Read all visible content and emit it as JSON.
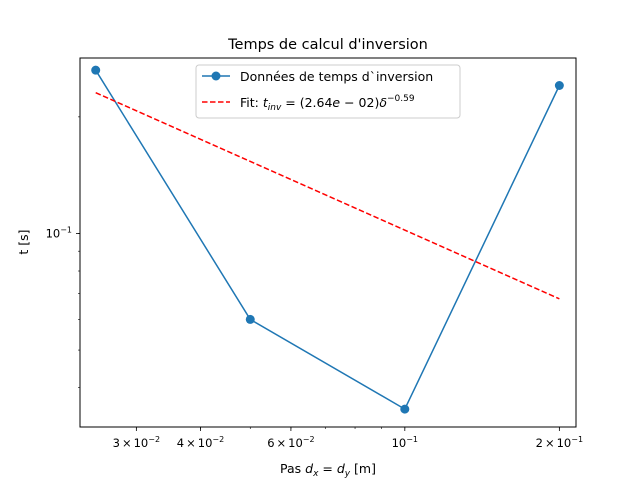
{
  "chart_data": {
    "type": "line",
    "title": "Temps de calcul d'inversion",
    "xlabel_prefix": "Pas ",
    "xlabel_math": "d_x = d_y",
    "xlabel_suffix": " [m]",
    "ylabel": "t [s]",
    "x_scale": "log",
    "y_scale": "log",
    "xlim": [
      0.0233,
      0.2155
    ],
    "ylim": [
      0.03165,
      0.2838
    ],
    "grid": false,
    "legend_position": "top-center",
    "x_ticks": [
      {
        "value": 0.03,
        "mantissa": "3",
        "exponent": "−2"
      },
      {
        "value": 0.04,
        "mantissa": "4",
        "exponent": "−2"
      },
      {
        "value": 0.06,
        "mantissa": "6",
        "exponent": "−2"
      },
      {
        "value": 0.1,
        "mantissa": "",
        "exponent": "−1"
      },
      {
        "value": 0.2,
        "mantissa": "2",
        "exponent": "−1"
      }
    ],
    "y_ticks": [
      {
        "value": 0.1,
        "mantissa": "",
        "exponent": "−1"
      }
    ],
    "series": [
      {
        "name": "Données de temps d`inversion",
        "style": "line-marker",
        "color": "#1f77b4",
        "x": [
          0.025,
          0.05,
          0.1,
          0.2
        ],
        "y": [
          0.264,
          0.06,
          0.0352,
          0.241
        ]
      },
      {
        "name_prefix": "Fit: ",
        "name_math": "t_{inv} = (2.64e-02)δ^{-0.59}",
        "style": "dashed",
        "color": "#ff0000",
        "x": [
          0.025,
          0.2
        ],
        "y": [
          0.2309,
          0.0678
        ]
      }
    ]
  }
}
